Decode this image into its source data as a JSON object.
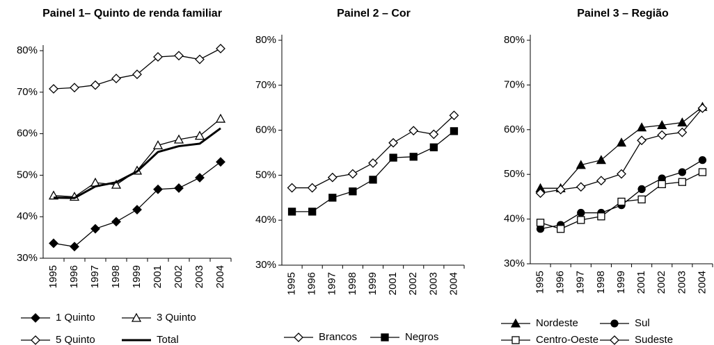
{
  "chart_data": [
    {
      "type": "line",
      "title": "Painel 1– Quinto de renda familiar",
      "categories": [
        "1995",
        "1996",
        "1997",
        "1998",
        "1999",
        "2001",
        "2002",
        "2003",
        "2004"
      ],
      "ylim": [
        30,
        80
      ],
      "yticks": [
        {
          "value": 30,
          "label": "30%"
        },
        {
          "value": 40,
          "label": "40%"
        },
        {
          "value": 50,
          "label": "50%"
        },
        {
          "value": 60,
          "label": "60%"
        },
        {
          "value": 70,
          "label": "70%"
        },
        {
          "value": 80,
          "label": "80%"
        }
      ],
      "series": [
        {
          "name": "1 Quinto",
          "color": "#000000",
          "marker": "diamond",
          "filled": true,
          "values": [
            33.6,
            32.8,
            37.1,
            38.8,
            41.7,
            46.6,
            46.9,
            49.4,
            53.2
          ]
        },
        {
          "name": "3 Quinto",
          "color": "#000000",
          "marker": "triangle",
          "filled": false,
          "values": [
            45.1,
            44.8,
            48.2,
            47.7,
            51.1,
            57.2,
            58.6,
            59.5,
            63.6
          ]
        },
        {
          "name": "5 Quinto",
          "color": "#000000",
          "marker": "diamond",
          "filled": false,
          "values": [
            70.8,
            71.1,
            71.7,
            73.3,
            74.3,
            78.5,
            78.8,
            77.9,
            80.5
          ]
        },
        {
          "name": "Total",
          "color": "#000000",
          "marker": "none",
          "filled": true,
          "line_width": 3,
          "values": [
            44.6,
            44.5,
            47.3,
            48.3,
            50.9,
            55.6,
            57.0,
            57.6,
            61.3
          ]
        }
      ]
    },
    {
      "type": "line",
      "title": "Painel 2 – Cor",
      "categories": [
        "1995",
        "1996",
        "1997",
        "1998",
        "1999",
        "2001",
        "2002",
        "2003",
        "2004"
      ],
      "ylim": [
        30,
        80
      ],
      "yticks": [
        {
          "value": 30,
          "label": "30%"
        },
        {
          "value": 40,
          "label": "40%"
        },
        {
          "value": 50,
          "label": "50%"
        },
        {
          "value": 60,
          "label": "60%"
        },
        {
          "value": 70,
          "label": "70%"
        },
        {
          "value": 80,
          "label": "80%"
        }
      ],
      "series": [
        {
          "name": "Brancos",
          "color": "#000000",
          "marker": "diamond",
          "filled": false,
          "values": [
            47.2,
            47.2,
            49.5,
            50.3,
            52.7,
            57.2,
            59.9,
            59.1,
            63.3
          ]
        },
        {
          "name": "Negros",
          "color": "#000000",
          "marker": "square",
          "filled": true,
          "values": [
            41.9,
            41.9,
            45.0,
            46.4,
            49.0,
            53.9,
            54.1,
            56.2,
            59.8
          ]
        }
      ]
    },
    {
      "type": "line",
      "title": "Painel 3 – Região",
      "categories": [
        "1995",
        "1996",
        "1997",
        "1998",
        "1999",
        "2001",
        "2002",
        "2003",
        "2004"
      ],
      "ylim": [
        30,
        80
      ],
      "yticks": [
        {
          "value": 30,
          "label": "30%"
        },
        {
          "value": 40,
          "label": "40%"
        },
        {
          "value": 50,
          "label": "50%"
        },
        {
          "value": 60,
          "label": "60%"
        },
        {
          "value": 70,
          "label": "70%"
        },
        {
          "value": 80,
          "label": "80%"
        }
      ],
      "series": [
        {
          "name": "Nordeste",
          "color": "#000000",
          "marker": "triangle",
          "filled": true,
          "values": [
            46.9,
            46.9,
            52.1,
            53.2,
            57.1,
            60.5,
            61.0,
            61.6,
            65.1
          ]
        },
        {
          "name": "Sul",
          "color": "#000000",
          "marker": "circle",
          "filled": true,
          "values": [
            37.8,
            38.7,
            41.4,
            41.4,
            43.1,
            46.7,
            49.1,
            50.5,
            53.2
          ]
        },
        {
          "name": "Centro-Oeste",
          "color": "#000000",
          "marker": "square",
          "filled": false,
          "values": [
            39.2,
            37.8,
            39.8,
            40.6,
            43.9,
            44.4,
            47.8,
            48.3,
            50.5
          ]
        },
        {
          "name": "Sudeste",
          "color": "#000000",
          "marker": "diamond",
          "filled": false,
          "values": [
            45.8,
            46.6,
            47.2,
            48.6,
            50.1,
            57.6,
            58.8,
            59.4,
            64.8
          ]
        }
      ]
    }
  ]
}
